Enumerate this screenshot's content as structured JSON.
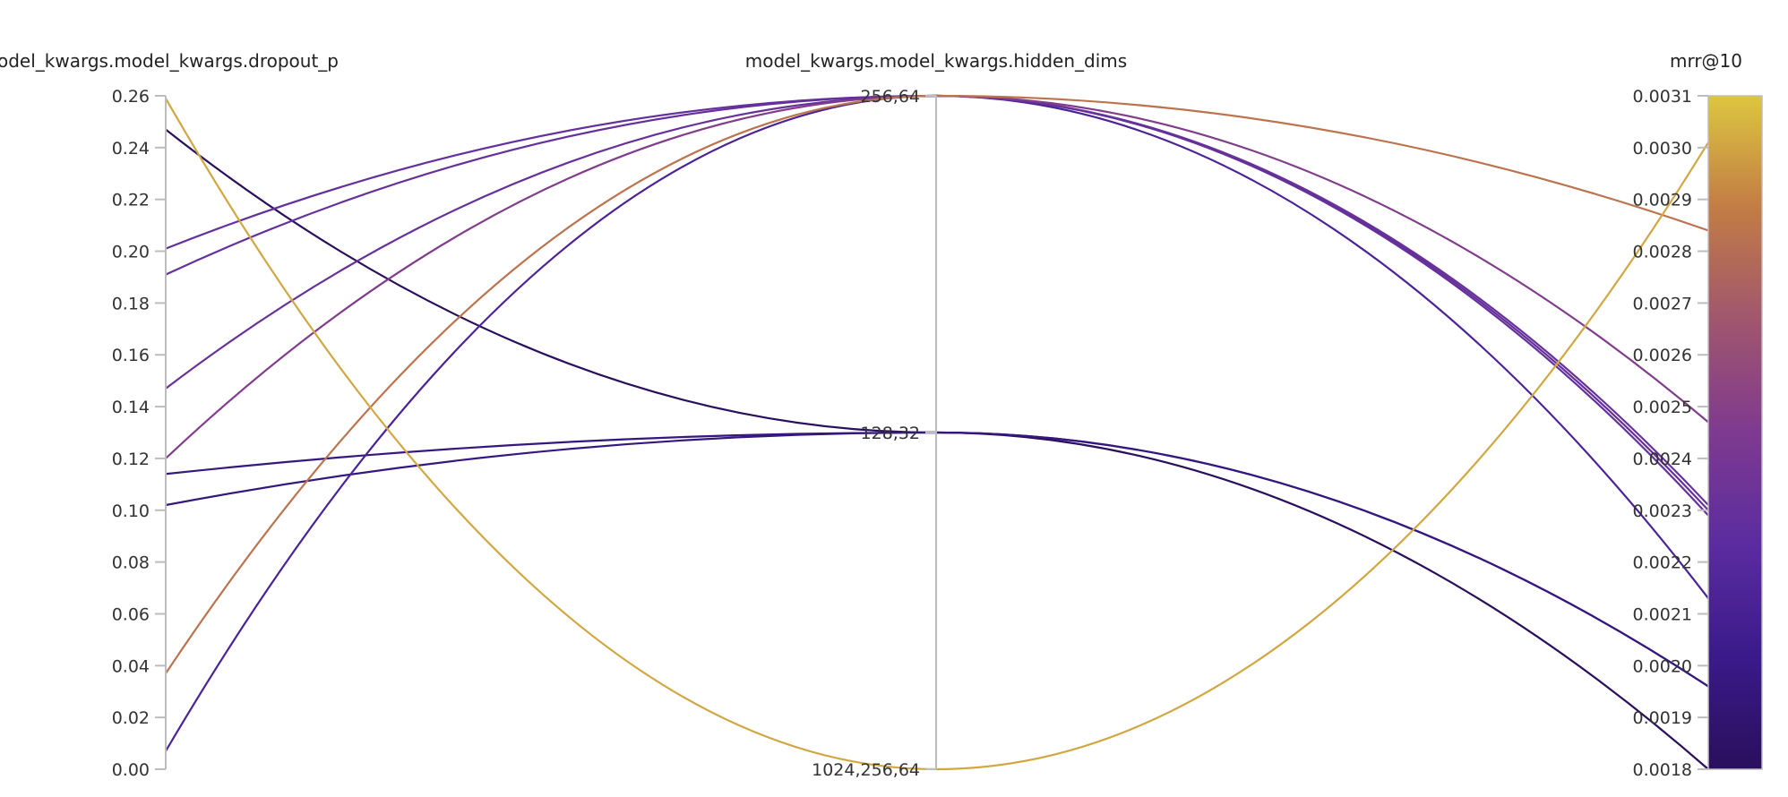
{
  "chart_data": {
    "type": "parallel-coordinates",
    "axes": [
      {
        "title": "model_kwargs.model_kwargs.dropout_p",
        "scale": "linear",
        "range": [
          0.0,
          0.26
        ],
        "ticks": [
          "0.26",
          "0.24",
          "0.22",
          "0.20",
          "0.18",
          "0.16",
          "0.14",
          "0.12",
          "0.10",
          "0.08",
          "0.06",
          "0.04",
          "0.02",
          "0.00"
        ]
      },
      {
        "title": "model_kwargs.model_kwargs.hidden_dims",
        "scale": "categorical",
        "categories": [
          "256,64",
          "128,32",
          "1024,256,64"
        ]
      },
      {
        "title": "mrr@10",
        "scale": "linear",
        "range": [
          0.0018,
          0.0031
        ],
        "ticks": [
          "0.0031",
          "0.0030",
          "0.0029",
          "0.0028",
          "0.0027",
          "0.0026",
          "0.0025",
          "0.0024",
          "0.0023",
          "0.0022",
          "0.0021",
          "0.0020",
          "0.0019",
          "0.0018"
        ]
      }
    ],
    "colorbar": {
      "metric": "mrr@10",
      "range": [
        0.0018,
        0.0031
      ],
      "stops": [
        "#2a0f5c",
        "#3a1a8a",
        "#5b2ca0",
        "#7e3a8f",
        "#a0566e",
        "#c27c45",
        "#dcc640"
      ]
    },
    "runs": [
      {
        "dropout_p": 0.259,
        "hidden_dims": "1024,256,64",
        "mrr": 0.00301
      },
      {
        "dropout_p": 0.247,
        "hidden_dims": "128,32",
        "mrr": 0.0018
      },
      {
        "dropout_p": 0.201,
        "hidden_dims": "256,64",
        "mrr": 0.00229
      },
      {
        "dropout_p": 0.191,
        "hidden_dims": "256,64",
        "mrr": 0.0023
      },
      {
        "dropout_p": 0.147,
        "hidden_dims": "256,64",
        "mrr": 0.00231
      },
      {
        "dropout_p": 0.12,
        "hidden_dims": "256,64",
        "mrr": 0.00247
      },
      {
        "dropout_p": 0.114,
        "hidden_dims": "128,32",
        "mrr": 0.00196
      },
      {
        "dropout_p": 0.102,
        "hidden_dims": "128,32",
        "mrr": 0.00196
      },
      {
        "dropout_p": 0.037,
        "hidden_dims": "256,64",
        "mrr": 0.00284
      },
      {
        "dropout_p": 0.007,
        "hidden_dims": "256,64",
        "mrr": 0.00213
      }
    ]
  }
}
